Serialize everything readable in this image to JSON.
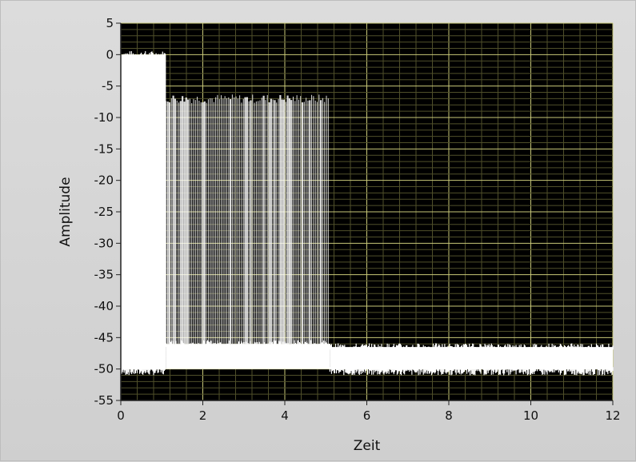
{
  "chart_data": {
    "type": "line",
    "title": "",
    "xlabel": "Zeit",
    "ylabel": "Amplitude",
    "xlim": [
      0,
      12
    ],
    "ylim": [
      -55,
      5
    ],
    "x_ticks": [
      0,
      2,
      4,
      6,
      8,
      10,
      12
    ],
    "y_ticks": [
      5,
      0,
      -5,
      -10,
      -15,
      -20,
      -25,
      -30,
      -35,
      -40,
      -45,
      -50,
      -55
    ],
    "grid": true,
    "legend": "none",
    "colors": {
      "plot_background": "#000000",
      "grid_major": "#c8c878",
      "grid_minor": "#4f4f2a",
      "trace": "#ffffff"
    },
    "series": [
      {
        "segments": [
          {
            "x_start": 0.0,
            "x_end": 1.1,
            "top": 0,
            "bottom": -50
          },
          {
            "x_start": 1.1,
            "x_end": 5.1,
            "top": -7,
            "bottom": -46,
            "comb": true
          },
          {
            "x_start": 5.1,
            "x_end": 12.0,
            "top": -46.5,
            "bottom": -50
          }
        ]
      }
    ]
  }
}
